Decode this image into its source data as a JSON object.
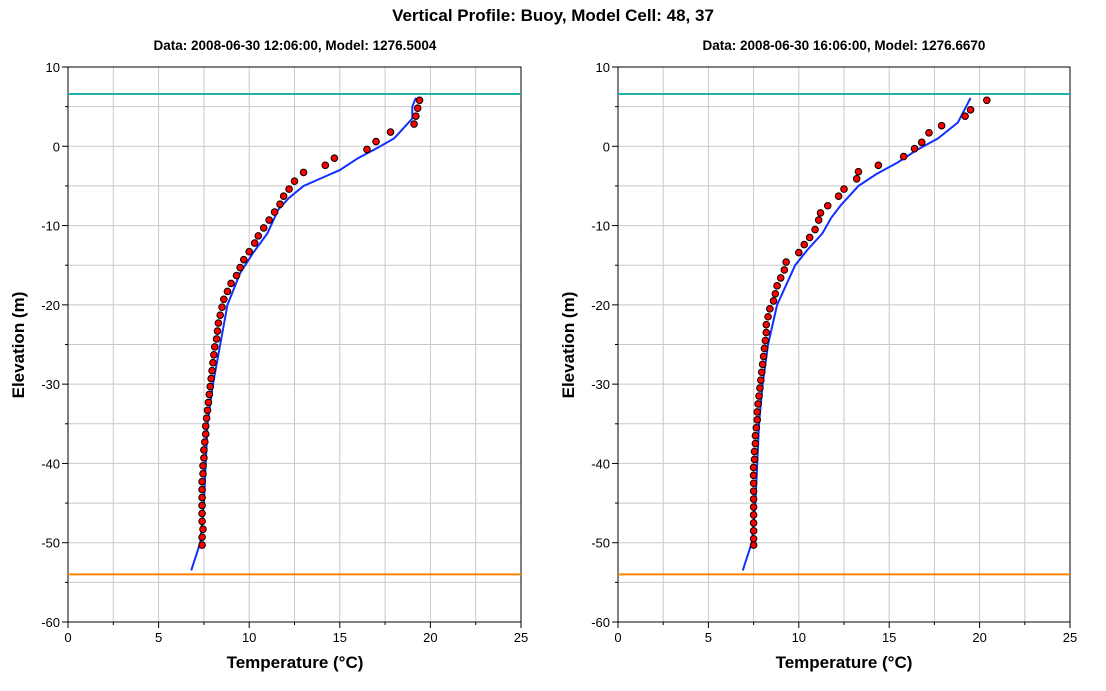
{
  "title": "Vertical Profile: Buoy, Model Cell: 48, 37",
  "colors": {
    "points": "#ff0000",
    "line": "#1030ff",
    "upper_ref": "#20b2aa",
    "lower_ref": "#ff8000",
    "grid": "#c8c8c8"
  },
  "chart_data": [
    {
      "type": "scatter+line",
      "title": "Data: 2008-06-30 12:06:00, Model: 1276.5004",
      "xlabel": "Temperature (°C)",
      "ylabel": "Elevation (m)",
      "xlim": [
        0,
        25
      ],
      "ylim": [
        -60,
        10
      ],
      "xticks": [
        "0",
        "5",
        "10",
        "15",
        "20",
        "25"
      ],
      "yticks": [
        "10",
        "0",
        "-10",
        "-20",
        "-30",
        "-40",
        "-50",
        "-60"
      ],
      "grid": true,
      "reference_lines": [
        6.6,
        -54
      ],
      "points": [
        [
          19.4,
          5.8
        ],
        [
          19.3,
          4.8
        ],
        [
          19.2,
          3.8
        ],
        [
          19.1,
          2.8
        ],
        [
          17.8,
          1.8
        ],
        [
          17.0,
          0.6
        ],
        [
          16.5,
          -0.4
        ],
        [
          14.7,
          -1.5
        ],
        [
          14.2,
          -2.4
        ],
        [
          13.0,
          -3.3
        ],
        [
          12.5,
          -4.4
        ],
        [
          12.2,
          -5.4
        ],
        [
          11.9,
          -6.3
        ],
        [
          11.7,
          -7.3
        ],
        [
          11.4,
          -8.3
        ],
        [
          11.1,
          -9.3
        ],
        [
          10.8,
          -10.3
        ],
        [
          10.5,
          -11.3
        ],
        [
          10.3,
          -12.2
        ],
        [
          10.0,
          -13.3
        ],
        [
          9.7,
          -14.3
        ],
        [
          9.5,
          -15.3
        ],
        [
          9.3,
          -16.3
        ],
        [
          9.0,
          -17.3
        ],
        [
          8.8,
          -18.3
        ],
        [
          8.6,
          -19.3
        ],
        [
          8.5,
          -20.3
        ],
        [
          8.4,
          -21.3
        ],
        [
          8.3,
          -22.3
        ],
        [
          8.25,
          -23.3
        ],
        [
          8.2,
          -24.3
        ],
        [
          8.1,
          -25.3
        ],
        [
          8.05,
          -26.3
        ],
        [
          8.0,
          -27.3
        ],
        [
          7.95,
          -28.3
        ],
        [
          7.9,
          -29.3
        ],
        [
          7.85,
          -30.3
        ],
        [
          7.8,
          -31.3
        ],
        [
          7.75,
          -32.3
        ],
        [
          7.7,
          -33.3
        ],
        [
          7.65,
          -34.3
        ],
        [
          7.6,
          -35.3
        ],
        [
          7.6,
          -36.3
        ],
        [
          7.55,
          -37.3
        ],
        [
          7.5,
          -38.3
        ],
        [
          7.5,
          -39.3
        ],
        [
          7.45,
          -40.3
        ],
        [
          7.45,
          -41.3
        ],
        [
          7.4,
          -42.3
        ],
        [
          7.4,
          -43.3
        ],
        [
          7.4,
          -44.3
        ],
        [
          7.4,
          -45.3
        ],
        [
          7.4,
          -46.3
        ],
        [
          7.4,
          -47.3
        ],
        [
          7.45,
          -48.3
        ],
        [
          7.4,
          -49.3
        ],
        [
          7.4,
          -50.3
        ]
      ],
      "line": [
        [
          6.8,
          -53.5
        ],
        [
          7.3,
          -50
        ],
        [
          7.5,
          -45
        ],
        [
          7.7,
          -35
        ],
        [
          8.0,
          -30
        ],
        [
          8.4,
          -25
        ],
        [
          8.8,
          -20
        ],
        [
          9.5,
          -16
        ],
        [
          10.2,
          -13.5
        ],
        [
          11.0,
          -11
        ],
        [
          11.6,
          -8
        ],
        [
          12.2,
          -6.5
        ],
        [
          13.0,
          -5
        ],
        [
          14.0,
          -4
        ],
        [
          15.0,
          -3
        ],
        [
          16.0,
          -1.5
        ],
        [
          17.0,
          -0.3
        ],
        [
          18.0,
          1
        ],
        [
          19.0,
          3.5
        ],
        [
          19.0,
          5
        ],
        [
          19.2,
          6.1
        ]
      ]
    },
    {
      "type": "scatter+line",
      "title": "Data: 2008-06-30 16:06:00, Model: 1276.6670",
      "xlabel": "Temperature (°C)",
      "ylabel": "Elevation (m)",
      "xlim": [
        0,
        25
      ],
      "ylim": [
        -60,
        10
      ],
      "xticks": [
        "0",
        "5",
        "10",
        "15",
        "20",
        "25"
      ],
      "yticks": [
        "10",
        "0",
        "-10",
        "-20",
        "-30",
        "-40",
        "-50",
        "-60"
      ],
      "grid": true,
      "reference_lines": [
        6.6,
        -54
      ],
      "points": [
        [
          20.4,
          5.8
        ],
        [
          19.5,
          4.6
        ],
        [
          19.2,
          3.8
        ],
        [
          17.9,
          2.6
        ],
        [
          17.2,
          1.7
        ],
        [
          16.8,
          0.5
        ],
        [
          16.4,
          -0.3
        ],
        [
          15.8,
          -1.3
        ],
        [
          14.4,
          -2.4
        ],
        [
          13.3,
          -3.2
        ],
        [
          13.2,
          -4.1
        ],
        [
          12.5,
          -5.4
        ],
        [
          12.2,
          -6.3
        ],
        [
          11.6,
          -7.5
        ],
        [
          11.2,
          -8.4
        ],
        [
          11.1,
          -9.3
        ],
        [
          10.9,
          -10.5
        ],
        [
          10.6,
          -11.5
        ],
        [
          10.3,
          -12.4
        ],
        [
          10.0,
          -13.4
        ],
        [
          9.3,
          -14.6
        ],
        [
          9.2,
          -15.6
        ],
        [
          9.0,
          -16.6
        ],
        [
          8.8,
          -17.6
        ],
        [
          8.7,
          -18.6
        ],
        [
          8.6,
          -19.5
        ],
        [
          8.4,
          -20.5
        ],
        [
          8.3,
          -21.5
        ],
        [
          8.2,
          -22.5
        ],
        [
          8.2,
          -23.5
        ],
        [
          8.15,
          -24.5
        ],
        [
          8.1,
          -25.5
        ],
        [
          8.05,
          -26.5
        ],
        [
          8.0,
          -27.5
        ],
        [
          7.95,
          -28.5
        ],
        [
          7.9,
          -29.5
        ],
        [
          7.85,
          -30.5
        ],
        [
          7.8,
          -31.5
        ],
        [
          7.75,
          -32.5
        ],
        [
          7.7,
          -33.5
        ],
        [
          7.7,
          -34.5
        ],
        [
          7.65,
          -35.5
        ],
        [
          7.6,
          -36.5
        ],
        [
          7.6,
          -37.5
        ],
        [
          7.55,
          -38.5
        ],
        [
          7.55,
          -39.5
        ],
        [
          7.5,
          -40.5
        ],
        [
          7.5,
          -41.5
        ],
        [
          7.5,
          -42.5
        ],
        [
          7.5,
          -43.5
        ],
        [
          7.5,
          -44.5
        ],
        [
          7.5,
          -45.5
        ],
        [
          7.5,
          -46.5
        ],
        [
          7.5,
          -47.5
        ],
        [
          7.5,
          -48.5
        ],
        [
          7.5,
          -49.5
        ],
        [
          7.5,
          -50.3
        ]
      ],
      "line": [
        [
          6.9,
          -53.5
        ],
        [
          7.4,
          -50
        ],
        [
          7.6,
          -45
        ],
        [
          7.8,
          -35
        ],
        [
          8.0,
          -30
        ],
        [
          8.3,
          -25
        ],
        [
          8.8,
          -20
        ],
        [
          9.8,
          -15
        ],
        [
          10.5,
          -13
        ],
        [
          11.3,
          -11
        ],
        [
          11.8,
          -9
        ],
        [
          12.3,
          -7.5
        ],
        [
          13.3,
          -5
        ],
        [
          14.3,
          -3.5
        ],
        [
          15.5,
          -2
        ],
        [
          16.5,
          -0.5
        ],
        [
          17.7,
          1
        ],
        [
          18.8,
          3
        ],
        [
          19.5,
          6.1
        ]
      ]
    }
  ]
}
